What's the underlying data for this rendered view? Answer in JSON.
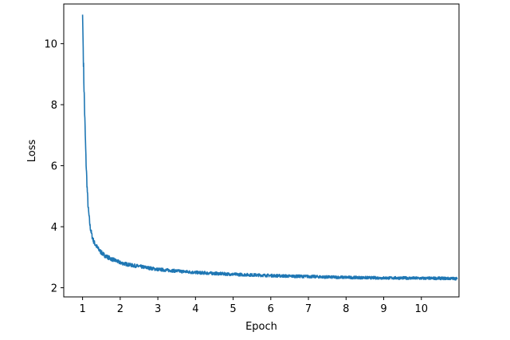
{
  "chart_data": {
    "type": "line",
    "title": "",
    "xlabel": "Epoch",
    "ylabel": "Loss",
    "xlim": [
      0.5,
      11.0
    ],
    "ylim": [
      1.7,
      11.3
    ],
    "x_ticks": [
      1,
      2,
      3,
      4,
      5,
      6,
      7,
      8,
      9,
      10
    ],
    "y_ticks": [
      2,
      4,
      6,
      8,
      10
    ],
    "grid": false,
    "line_color": "#1f77b4",
    "series": [
      {
        "x": [
          1.0,
          1.03,
          1.06,
          1.09,
          1.12,
          1.15,
          1.2,
          1.25,
          1.3,
          1.4,
          1.5,
          1.6,
          1.75,
          1.9,
          2.0,
          2.25,
          2.5,
          3.0,
          3.5,
          4.0,
          4.5,
          5.0,
          5.5,
          6.0,
          6.5,
          7.0,
          7.5,
          8.0,
          8.5,
          9.0,
          9.5,
          10.0,
          10.5,
          10.95
        ],
        "values": [
          10.95,
          9.0,
          7.5,
          6.2,
          5.3,
          4.6,
          4.0,
          3.7,
          3.5,
          3.3,
          3.15,
          3.05,
          2.95,
          2.88,
          2.82,
          2.75,
          2.7,
          2.6,
          2.55,
          2.5,
          2.47,
          2.44,
          2.42,
          2.4,
          2.38,
          2.37,
          2.35,
          2.34,
          2.33,
          2.32,
          2.32,
          2.31,
          2.31,
          2.3
        ]
      }
    ]
  }
}
